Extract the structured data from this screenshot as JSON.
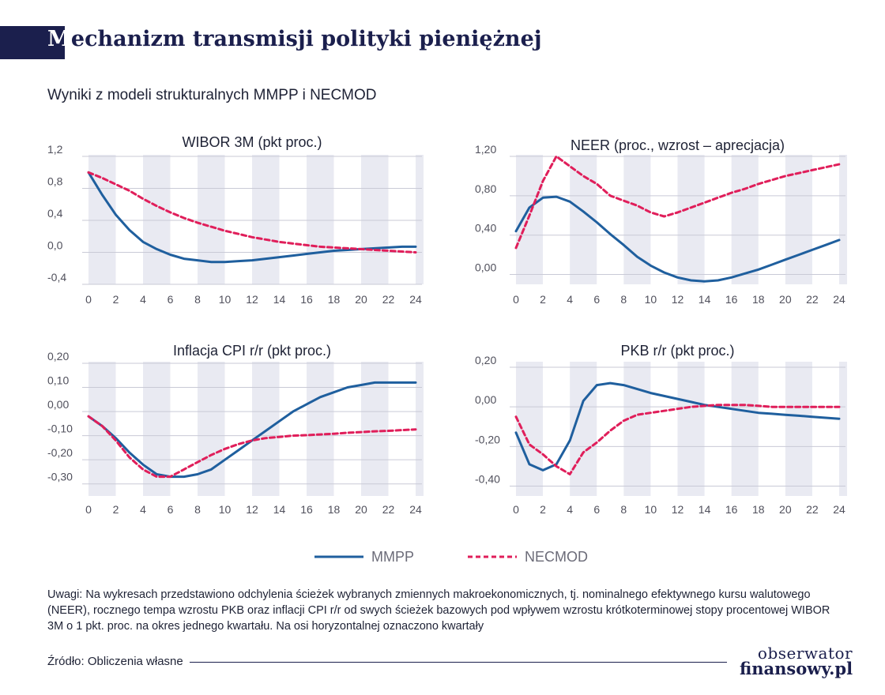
{
  "header": {
    "title_first": "M",
    "title_rest": "echanizm transmisji polityki pieniężnej",
    "subtitle": "Wyniki z modeli strukturalnych MMPP i NECMOD"
  },
  "colors": {
    "navy": "#1b1f4d",
    "mmpp": "#1f5f9e",
    "necmod": "#e01e5a",
    "band": "#e9eaf2",
    "axis_text": "#50505c"
  },
  "legend": {
    "mmpp": "MMPP",
    "necmod": "NECMOD"
  },
  "chart_data": [
    {
      "type": "line",
      "title": "WIBOR 3M (pkt proc.)",
      "x": [
        0,
        1,
        2,
        3,
        4,
        5,
        6,
        7,
        8,
        9,
        10,
        11,
        12,
        13,
        14,
        15,
        16,
        17,
        18,
        19,
        20,
        21,
        22,
        23,
        24
      ],
      "xticks": [
        "0",
        "2",
        "4",
        "6",
        "8",
        "10",
        "12",
        "14",
        "16",
        "18",
        "20",
        "22",
        "24"
      ],
      "xlim": [
        0,
        24
      ],
      "ylim": [
        -0.4,
        1.2
      ],
      "yticks": [
        "1,2",
        "0,8",
        "0,4",
        "0,0",
        "-0,4"
      ],
      "ytick_values": [
        1.2,
        0.8,
        0.4,
        0.0,
        -0.4
      ],
      "series": [
        {
          "name": "MMPP",
          "values": [
            1.0,
            0.72,
            0.47,
            0.28,
            0.13,
            0.04,
            -0.03,
            -0.08,
            -0.1,
            -0.12,
            -0.12,
            -0.11,
            -0.1,
            -0.08,
            -0.06,
            -0.04,
            -0.02,
            0.0,
            0.02,
            0.03,
            0.04,
            0.05,
            0.06,
            0.07,
            0.07
          ]
        },
        {
          "name": "NECMOD",
          "values": [
            1.0,
            0.93,
            0.85,
            0.77,
            0.67,
            0.58,
            0.5,
            0.43,
            0.37,
            0.32,
            0.27,
            0.23,
            0.19,
            0.16,
            0.13,
            0.11,
            0.09,
            0.07,
            0.06,
            0.05,
            0.04,
            0.03,
            0.02,
            0.01,
            0.0
          ]
        }
      ]
    },
    {
      "type": "line",
      "title": "NEER (proc., wzrost – aprecjacja)",
      "x": [
        0,
        1,
        2,
        3,
        4,
        5,
        6,
        7,
        8,
        9,
        10,
        11,
        12,
        13,
        14,
        15,
        16,
        17,
        18,
        19,
        20,
        21,
        22,
        23,
        24
      ],
      "xticks": [
        "0",
        "2",
        "4",
        "6",
        "8",
        "10",
        "12",
        "14",
        "16",
        "18",
        "20",
        "22",
        "24"
      ],
      "xlim": [
        0,
        24
      ],
      "ylim": [
        -0.1,
        1.2
      ],
      "yticks": [
        "1,20",
        "0,80",
        "0,40",
        "0,00"
      ],
      "ytick_values": [
        1.2,
        0.8,
        0.4,
        0.0
      ],
      "series": [
        {
          "name": "MMPP",
          "values": [
            0.44,
            0.68,
            0.78,
            0.79,
            0.74,
            0.64,
            0.53,
            0.41,
            0.3,
            0.18,
            0.09,
            0.02,
            -0.03,
            -0.06,
            -0.07,
            -0.06,
            -0.03,
            0.01,
            0.05,
            0.1,
            0.15,
            0.2,
            0.25,
            0.3,
            0.35
          ]
        },
        {
          "name": "NECMOD",
          "values": [
            0.27,
            0.6,
            0.95,
            1.2,
            1.1,
            1.0,
            0.92,
            0.8,
            0.75,
            0.7,
            0.63,
            0.59,
            0.63,
            0.68,
            0.73,
            0.78,
            0.83,
            0.87,
            0.92,
            0.96,
            1.0,
            1.03,
            1.06,
            1.09,
            1.12
          ]
        }
      ]
    },
    {
      "type": "line",
      "title": "Inflacja CPI r/r (pkt proc.)",
      "x": [
        0,
        1,
        2,
        3,
        4,
        5,
        6,
        7,
        8,
        9,
        10,
        11,
        12,
        13,
        14,
        15,
        16,
        17,
        18,
        19,
        20,
        21,
        22,
        23,
        24
      ],
      "xticks": [
        "0",
        "2",
        "4",
        "6",
        "8",
        "10",
        "12",
        "14",
        "16",
        "18",
        "20",
        "22",
        "24"
      ],
      "xlim": [
        0,
        24
      ],
      "ylim": [
        -0.35,
        0.2
      ],
      "yticks": [
        "0,20",
        "0,10",
        "0,00",
        "-0,10",
        "-0,20",
        "-0,30"
      ],
      "ytick_values": [
        0.2,
        0.1,
        0.0,
        -0.1,
        -0.2,
        -0.3
      ],
      "series": [
        {
          "name": "MMPP",
          "values": [
            -0.02,
            -0.06,
            -0.11,
            -0.17,
            -0.22,
            -0.26,
            -0.27,
            -0.27,
            -0.26,
            -0.24,
            -0.2,
            -0.16,
            -0.12,
            -0.08,
            -0.04,
            0.0,
            0.03,
            0.06,
            0.08,
            0.1,
            0.11,
            0.12,
            0.12,
            0.12,
            0.12
          ]
        },
        {
          "name": "NECMOD",
          "values": [
            -0.02,
            -0.06,
            -0.12,
            -0.19,
            -0.24,
            -0.27,
            -0.27,
            -0.24,
            -0.21,
            -0.18,
            -0.155,
            -0.135,
            -0.12,
            -0.11,
            -0.105,
            -0.1,
            -0.098,
            -0.095,
            -0.092,
            -0.088,
            -0.085,
            -0.082,
            -0.08,
            -0.077,
            -0.074
          ]
        }
      ]
    },
    {
      "type": "line",
      "title": "PKB r/r (pkt proc.)",
      "x": [
        0,
        1,
        2,
        3,
        4,
        5,
        6,
        7,
        8,
        9,
        10,
        11,
        12,
        13,
        14,
        15,
        16,
        17,
        18,
        19,
        20,
        21,
        22,
        23,
        24
      ],
      "xticks": [
        "0",
        "2",
        "4",
        "6",
        "8",
        "10",
        "12",
        "14",
        "16",
        "18",
        "20",
        "22",
        "24"
      ],
      "xlim": [
        0,
        24
      ],
      "ylim": [
        -0.45,
        0.22
      ],
      "yticks": [
        "0,20",
        "0,00",
        "-0,20",
        "-0,40"
      ],
      "ytick_values": [
        0.2,
        0.0,
        -0.2,
        -0.4
      ],
      "series": [
        {
          "name": "MMPP",
          "values": [
            -0.13,
            -0.29,
            -0.32,
            -0.29,
            -0.17,
            0.03,
            0.11,
            0.12,
            0.11,
            0.09,
            0.07,
            0.055,
            0.04,
            0.025,
            0.01,
            0.0,
            -0.01,
            -0.02,
            -0.03,
            -0.035,
            -0.04,
            -0.045,
            -0.05,
            -0.055,
            -0.06
          ]
        },
        {
          "name": "NECMOD",
          "values": [
            -0.05,
            -0.19,
            -0.24,
            -0.3,
            -0.34,
            -0.23,
            -0.18,
            -0.12,
            -0.07,
            -0.04,
            -0.03,
            -0.02,
            -0.01,
            0.0,
            0.005,
            0.01,
            0.01,
            0.01,
            0.005,
            0.0,
            0.0,
            0.0,
            0.0,
            0.0,
            0.0
          ]
        }
      ]
    }
  ],
  "note": "Uwagi: Na wykresach przedstawiono odchylenia ścieżek wybranych zmiennych makroekonomicznych, tj. nominalnego efektywnego kursu walutowego (NEER), rocznego tempa wzrostu PKB oraz inflacji CPI r/r od swych ścieżek bazowych pod wpływem wzrostu krótkoterminowej stopy procentowej WIBOR 3M o 1 pkt. proc. na okres jednego kwartału. Na osi horyzontalnej oznaczono kwartały",
  "source": "Źródło: Obliczenia własne",
  "logo": {
    "line1": "obserwator",
    "line2": "finansowy.pl"
  }
}
